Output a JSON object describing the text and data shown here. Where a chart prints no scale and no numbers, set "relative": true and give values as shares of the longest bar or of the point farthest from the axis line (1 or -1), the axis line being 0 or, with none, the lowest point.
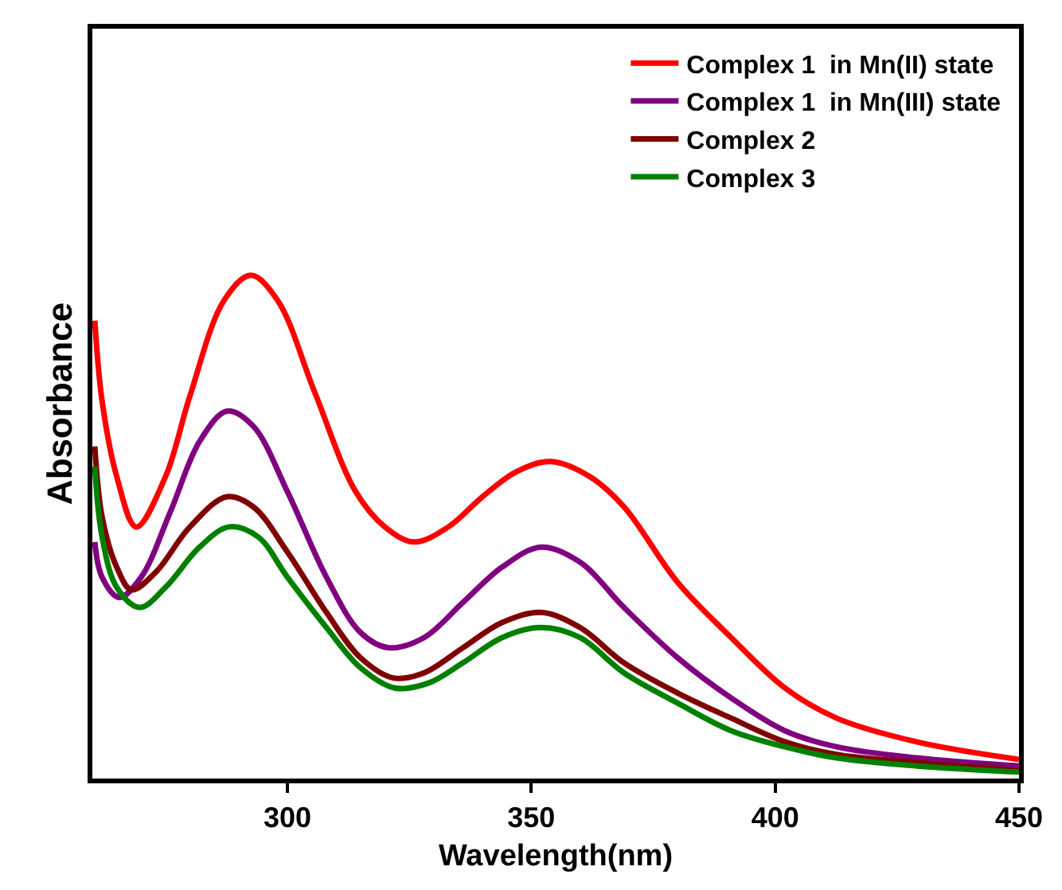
{
  "chart_data": {
    "type": "line",
    "relative": true,
    "xlabel": "Wavelength(nm)",
    "ylabel": "Absorbance",
    "xlim": [
      260,
      450
    ],
    "xticks": [
      300,
      350,
      400,
      450
    ],
    "legend": "top right",
    "marker": "none",
    "line_style": "solid",
    "series": [
      {
        "name": "Complex 1  in Mn(II) state",
        "color": "#ff0000",
        "x": [
          260.5,
          262,
          265,
          269,
          275,
          280,
          287,
          292.5,
          298,
          305.5,
          314,
          320,
          326,
          333,
          340,
          347,
          354,
          362,
          369,
          380,
          391,
          402,
          412.6,
          429,
          450
        ],
        "values": [
          0.91,
          0.75,
          0.6,
          0.5,
          0.6,
          0.76,
          0.95,
          1.0,
          0.95,
          0.77,
          0.57,
          0.5,
          0.47,
          0.5,
          0.56,
          0.61,
          0.63,
          0.6,
          0.54,
          0.39,
          0.28,
          0.18,
          0.12,
          0.073,
          0.038
        ]
      },
      {
        "name": "Complex 1  in Mn(III) state",
        "color": "#800080",
        "x": [
          260.5,
          262,
          265.5,
          270,
          276,
          282,
          287.6,
          293,
          300,
          308,
          315,
          320.7,
          328,
          336,
          344,
          352,
          360,
          369,
          380,
          391,
          402,
          412.6,
          429,
          450
        ],
        "values": [
          0.47,
          0.4,
          0.36,
          0.4,
          0.53,
          0.67,
          0.73,
          0.7,
          0.57,
          0.4,
          0.29,
          0.26,
          0.28,
          0.35,
          0.42,
          0.46,
          0.43,
          0.34,
          0.24,
          0.16,
          0.095,
          0.063,
          0.041,
          0.025
        ]
      },
      {
        "name": "Complex 2",
        "color": "#800000",
        "x": [
          260.5,
          262,
          265,
          268,
          273,
          280,
          287.6,
          293,
          300,
          308,
          315,
          321.7,
          328,
          336,
          344,
          352,
          360,
          369,
          380,
          391,
          402,
          412.6,
          429,
          450
        ],
        "values": [
          0.66,
          0.52,
          0.42,
          0.375,
          0.41,
          0.5,
          0.56,
          0.54,
          0.45,
          0.33,
          0.24,
          0.2,
          0.21,
          0.26,
          0.31,
          0.33,
          0.3,
          0.23,
          0.17,
          0.12,
          0.073,
          0.048,
          0.032,
          0.016
        ]
      },
      {
        "name": "Complex 3",
        "color": "#008000",
        "x": [
          260.5,
          262,
          265,
          269.7,
          275,
          282,
          288,
          294,
          300,
          308,
          315,
          322,
          329,
          336,
          344,
          352,
          360,
          369,
          380,
          391,
          402,
          412.6,
          429,
          450
        ],
        "values": [
          0.62,
          0.48,
          0.38,
          0.34,
          0.38,
          0.46,
          0.5,
          0.48,
          0.4,
          0.3,
          0.22,
          0.18,
          0.19,
          0.23,
          0.28,
          0.3,
          0.28,
          0.21,
          0.15,
          0.095,
          0.063,
          0.041,
          0.025,
          0.013
        ]
      }
    ]
  }
}
